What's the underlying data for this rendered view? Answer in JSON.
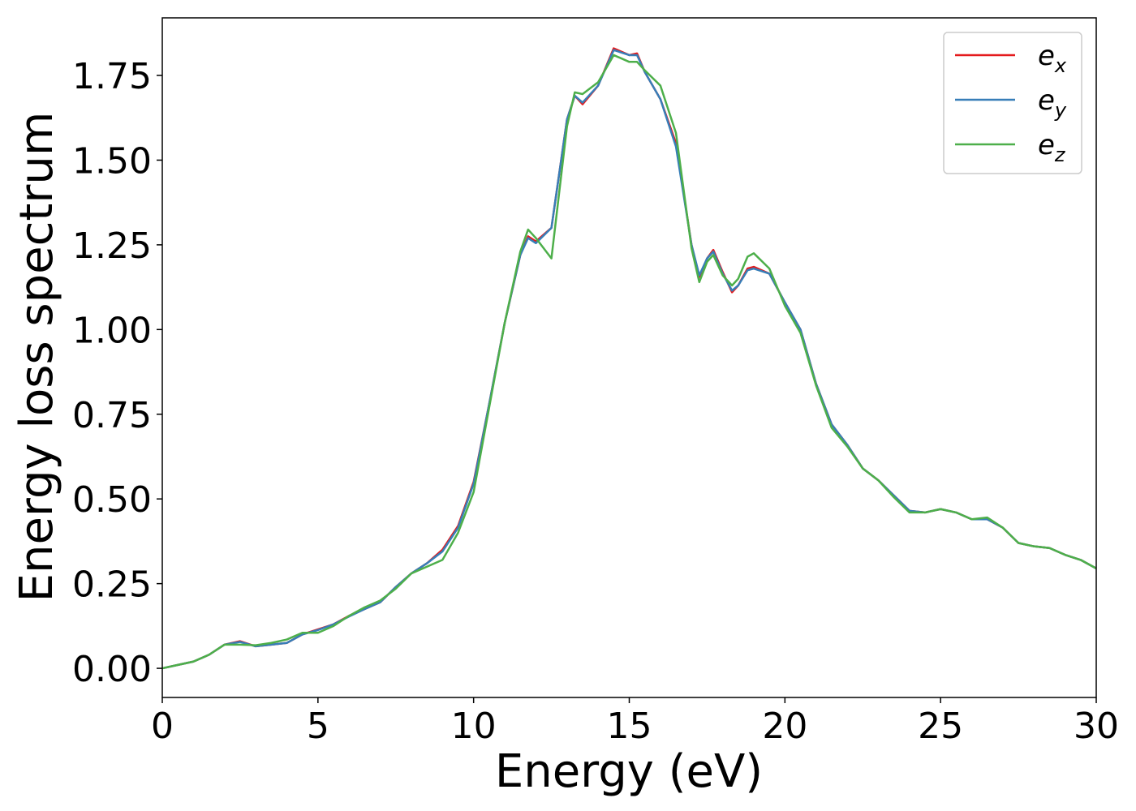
{
  "chart_data": {
    "type": "line",
    "xlabel": "Energy (eV)",
    "ylabel": "Energy loss spectrum",
    "x": [
      0,
      0.5,
      1,
      1.5,
      2,
      2.5,
      3,
      3.5,
      4,
      4.5,
      5,
      5.5,
      6,
      6.5,
      7,
      7.5,
      8,
      8.5,
      9,
      9.5,
      10,
      10.5,
      11,
      11.5,
      11.75,
      12,
      12.5,
      13,
      13.25,
      13.5,
      14,
      14.5,
      15,
      15.25,
      15.5,
      16,
      16.5,
      17,
      17.25,
      17.5,
      17.7,
      18,
      18.3,
      18.5,
      18.8,
      19,
      19.5,
      20,
      20.5,
      21,
      21.5,
      22,
      22.5,
      23,
      23.5,
      24,
      24.5,
      25,
      25.5,
      26,
      26.5,
      27,
      27.5,
      28,
      28.5,
      29,
      29.5,
      30
    ],
    "series": [
      {
        "name": "ex",
        "color": "#e41a1c",
        "values": [
          0.0,
          0.01,
          0.02,
          0.04,
          0.07,
          0.08,
          0.065,
          0.07,
          0.075,
          0.1,
          0.115,
          0.13,
          0.155,
          0.175,
          0.195,
          0.24,
          0.28,
          0.31,
          0.35,
          0.42,
          0.55,
          0.78,
          1.02,
          1.22,
          1.275,
          1.26,
          1.3,
          1.62,
          1.69,
          1.665,
          1.72,
          1.83,
          1.81,
          1.815,
          1.76,
          1.68,
          1.55,
          1.25,
          1.155,
          1.21,
          1.235,
          1.17,
          1.11,
          1.13,
          1.18,
          1.185,
          1.165,
          1.08,
          1.0,
          0.84,
          0.72,
          0.66,
          0.59,
          0.555,
          0.51,
          0.465,
          0.46,
          0.47,
          0.46,
          0.44,
          0.44,
          0.415,
          0.37,
          0.36,
          0.355,
          0.335,
          0.32,
          0.295
        ]
      },
      {
        "name": "ey",
        "color": "#377eb8",
        "values": [
          0.0,
          0.01,
          0.02,
          0.04,
          0.07,
          0.078,
          0.065,
          0.07,
          0.075,
          0.1,
          0.113,
          0.13,
          0.153,
          0.175,
          0.195,
          0.24,
          0.28,
          0.31,
          0.345,
          0.415,
          0.545,
          0.78,
          1.02,
          1.22,
          1.27,
          1.255,
          1.3,
          1.62,
          1.69,
          1.67,
          1.72,
          1.825,
          1.81,
          1.81,
          1.76,
          1.68,
          1.54,
          1.25,
          1.16,
          1.21,
          1.23,
          1.165,
          1.115,
          1.13,
          1.175,
          1.18,
          1.165,
          1.08,
          1.0,
          0.84,
          0.72,
          0.66,
          0.59,
          0.555,
          0.51,
          0.465,
          0.46,
          0.47,
          0.46,
          0.44,
          0.44,
          0.415,
          0.37,
          0.36,
          0.355,
          0.335,
          0.32,
          0.295
        ]
      },
      {
        "name": "ez",
        "color": "#4daf4a",
        "values": [
          0.0,
          0.01,
          0.02,
          0.04,
          0.07,
          0.07,
          0.068,
          0.075,
          0.085,
          0.105,
          0.105,
          0.125,
          0.155,
          0.18,
          0.2,
          0.235,
          0.28,
          0.3,
          0.32,
          0.4,
          0.52,
          0.77,
          1.02,
          1.23,
          1.295,
          1.27,
          1.21,
          1.6,
          1.7,
          1.695,
          1.73,
          1.81,
          1.79,
          1.79,
          1.765,
          1.72,
          1.58,
          1.24,
          1.14,
          1.2,
          1.22,
          1.16,
          1.13,
          1.15,
          1.215,
          1.225,
          1.18,
          1.07,
          0.99,
          0.835,
          0.71,
          0.655,
          0.59,
          0.555,
          0.505,
          0.46,
          0.46,
          0.47,
          0.46,
          0.44,
          0.445,
          0.415,
          0.37,
          0.36,
          0.355,
          0.335,
          0.32,
          0.295
        ]
      }
    ],
    "xlim": [
      0,
      30
    ],
    "ylim": [
      -0.086,
      1.92
    ],
    "xticks": [
      0,
      5,
      10,
      15,
      20,
      25,
      30
    ],
    "yticks": [
      {
        "value": 0,
        "label": "0.00"
      },
      {
        "value": 0.25,
        "label": "0.25"
      },
      {
        "value": 0.5,
        "label": "0.50"
      },
      {
        "value": 0.75,
        "label": "0.75"
      },
      {
        "value": 1,
        "label": "1.00"
      },
      {
        "value": 1.25,
        "label": "1.25"
      },
      {
        "value": 1.5,
        "label": "1.50"
      },
      {
        "value": 1.75,
        "label": "1.75"
      }
    ],
    "legend": "upper right"
  }
}
